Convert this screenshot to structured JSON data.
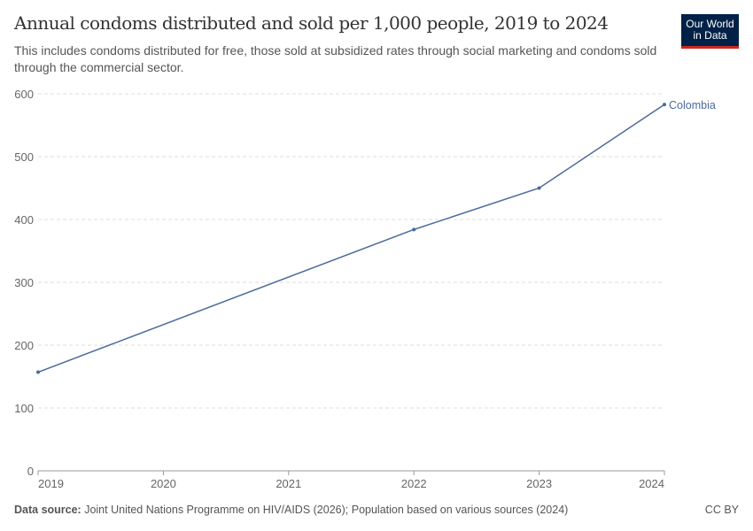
{
  "header": {
    "title": "Annual condoms distributed and sold per 1,000 people, 2019 to 2024",
    "subtitle": "This includes condoms distributed for free, those sold at subsidized rates through social marketing and condoms sold through the commercial sector.",
    "logo": [
      "Our World",
      "in Data"
    ]
  },
  "footer": {
    "source_label": "Data source:",
    "source_text": " Joint United Nations Programme on HIV/AIDS (2026); Population based on various sources (2024)",
    "license": "CC BY"
  },
  "chart_data": {
    "type": "line",
    "title": "Annual condoms distributed and sold per 1,000 people, 2019 to 2024",
    "x": [
      2019,
      2022,
      2023,
      2024
    ],
    "series": [
      {
        "name": "Colombia",
        "color": "#4c6a9c",
        "values": [
          157,
          384,
          450,
          583
        ]
      }
    ],
    "xticks": [
      2019,
      2020,
      2021,
      2022,
      2023,
      2024
    ],
    "yticks": [
      0,
      100,
      200,
      300,
      400,
      500,
      600
    ],
    "xlim": [
      2019,
      2024
    ],
    "ylim": [
      0,
      600
    ],
    "grid": "horizontal dashed",
    "legend": "line-end label"
  }
}
